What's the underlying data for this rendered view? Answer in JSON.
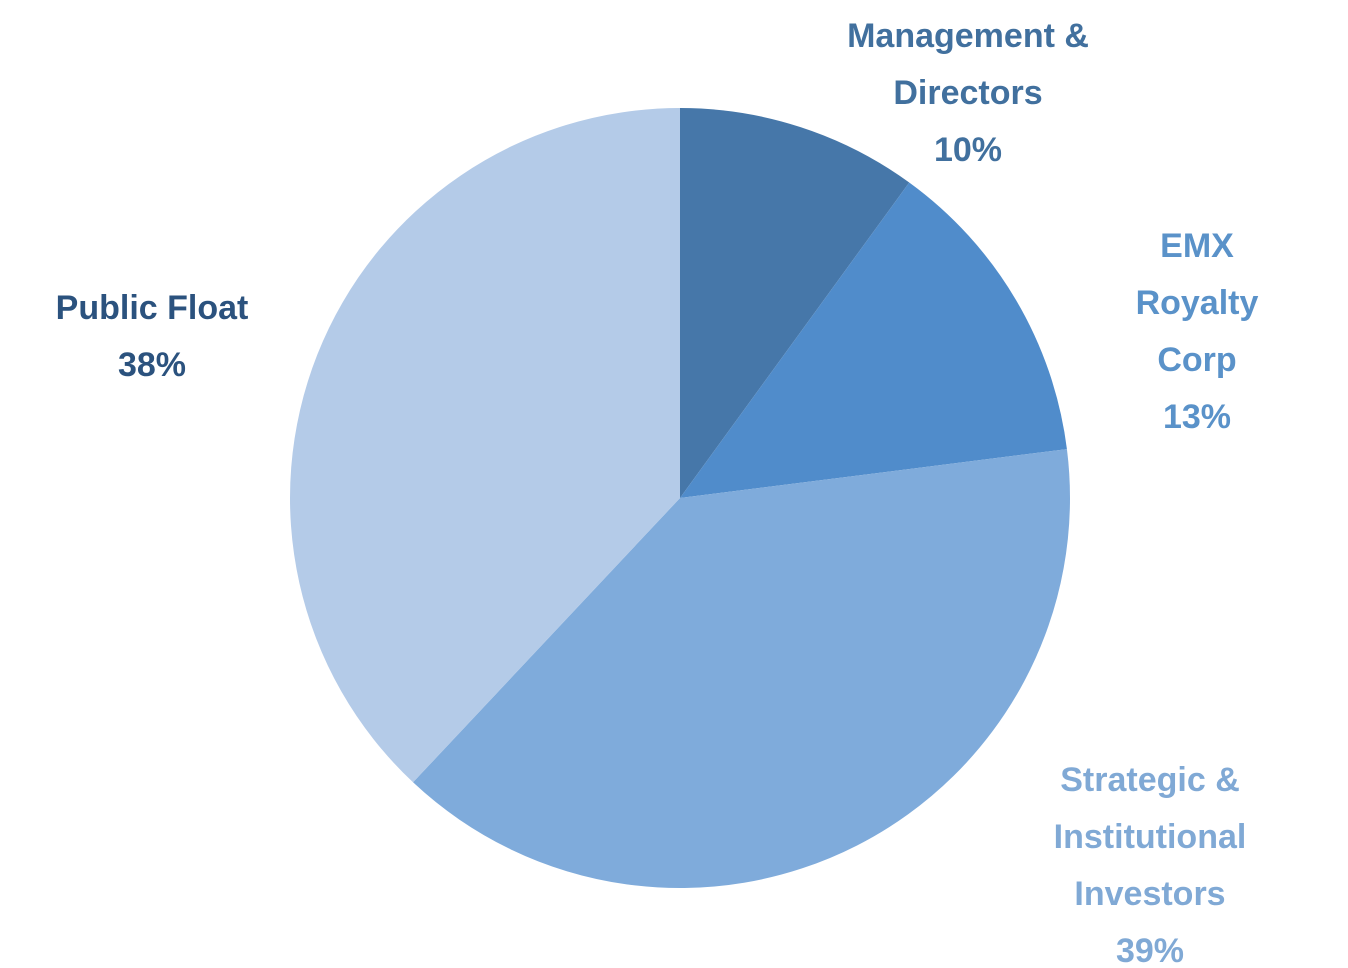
{
  "chart_data": {
    "type": "pie",
    "categories": [
      "Management &\nDirectors",
      "EMX Royalty\nCorp",
      "Strategic &\nInstitutional\nInvestors",
      "Public Float"
    ],
    "values": [
      10,
      13,
      39,
      38
    ],
    "value_labels": [
      "10%",
      "13%",
      "39%",
      "38%"
    ],
    "colors": [
      "#4677a9",
      "#508ccb",
      "#7fabdb",
      "#b4cbe8"
    ],
    "label_colors": [
      "#41709e",
      "#5a92c9",
      "#80a9d5",
      "#2b527e"
    ]
  }
}
